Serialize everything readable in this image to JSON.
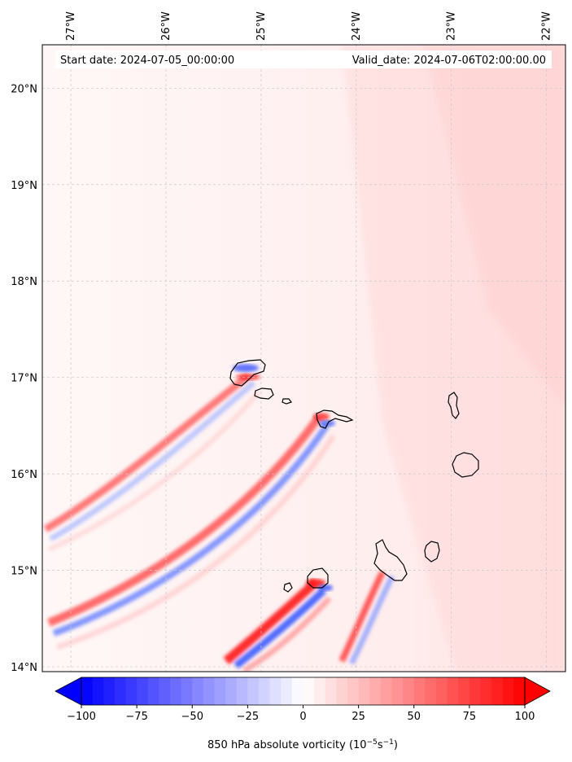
{
  "map": {
    "start_date": "Start date: 2024-07-05_00:00:00",
    "valid_date": "Valid_date: 2024-07-06T02:00:00.00",
    "lon_labels": [
      "27°W",
      "26°W",
      "25°W",
      "24°W",
      "23°W",
      "22°W"
    ],
    "lat_labels": [
      "20°N",
      "19°N",
      "18°N",
      "17°N",
      "16°N",
      "15°N",
      "14°N"
    ],
    "lon_values": [
      -27,
      -26,
      -25,
      -24,
      -23,
      -22
    ],
    "lat_values": [
      20,
      19,
      18,
      17,
      16,
      15,
      14
    ],
    "extent": {
      "lon_min": -27.3,
      "lon_max": -21.8,
      "lat_min": 13.95,
      "lat_max": 20.45
    }
  },
  "colorbar": {
    "ticks": [
      "−100",
      "−75",
      "−50",
      "−25",
      "0",
      "25",
      "50",
      "75",
      "100"
    ],
    "tick_values": [
      -100,
      -75,
      -50,
      -25,
      0,
      25,
      50,
      75,
      100
    ],
    "range": [
      -100,
      100
    ],
    "label_main": "850 hPa absolute vorticity (10",
    "label_exp1": "−5",
    "label_mid": "s",
    "label_exp2": "−1",
    "label_end": ")",
    "color_low": "#0000ff",
    "color_mid": "#ffffff",
    "color_high": "#ff0000"
  }
}
